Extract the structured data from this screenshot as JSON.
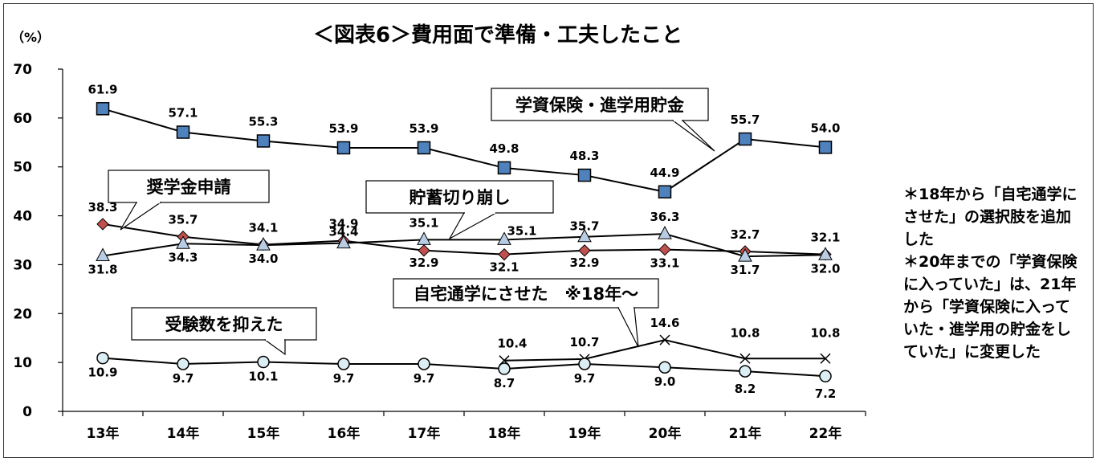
{
  "chart_data": {
    "type": "line",
    "title": "＜図表6＞費用面で準備・工夫したこと",
    "ylabel": "（%）",
    "ylim": [
      0,
      70
    ],
    "yticks": [
      0,
      10,
      20,
      30,
      40,
      50,
      60,
      70
    ],
    "categories": [
      "13年",
      "14年",
      "15年",
      "16年",
      "17年",
      "18年",
      "19年",
      "20年",
      "21年",
      "22年"
    ],
    "series": [
      {
        "name": "学資保険・進学用貯金",
        "marker": "square",
        "color": "#4F81BD",
        "values": [
          61.9,
          57.1,
          55.3,
          53.9,
          53.9,
          49.8,
          48.3,
          44.9,
          55.7,
          54.0
        ]
      },
      {
        "name": "奨学金申請",
        "marker": "diamond",
        "color": "#C0504D",
        "values": [
          38.3,
          35.7,
          34.1,
          34.9,
          32.9,
          32.1,
          32.9,
          33.1,
          32.7,
          32.1
        ]
      },
      {
        "name": "貯蓄切り崩し",
        "marker": "triangle",
        "color": "#B8CCE4",
        "values": [
          31.8,
          34.3,
          34.0,
          34.4,
          35.1,
          35.1,
          35.7,
          36.3,
          31.7,
          32.0
        ]
      },
      {
        "name": "自宅通学にさせた　※18年～",
        "marker": "x",
        "color": "#000000",
        "values": [
          null,
          null,
          null,
          null,
          null,
          10.4,
          10.7,
          14.6,
          10.8,
          10.8
        ]
      },
      {
        "name": "受験数を抑えた",
        "marker": "circle",
        "color": "#DAEEF3",
        "values": [
          10.9,
          9.7,
          10.1,
          9.7,
          9.7,
          8.7,
          9.7,
          9.0,
          8.2,
          7.2
        ]
      }
    ],
    "legend": "callouts",
    "grid": false
  },
  "note": "＊18年から「自宅通学にさせた」の選択肢を追加した\n＊20年までの「学資保険に入っていた」は、21年から「学資保険に入っていた・進学用の貯金をしていた」に変更した"
}
